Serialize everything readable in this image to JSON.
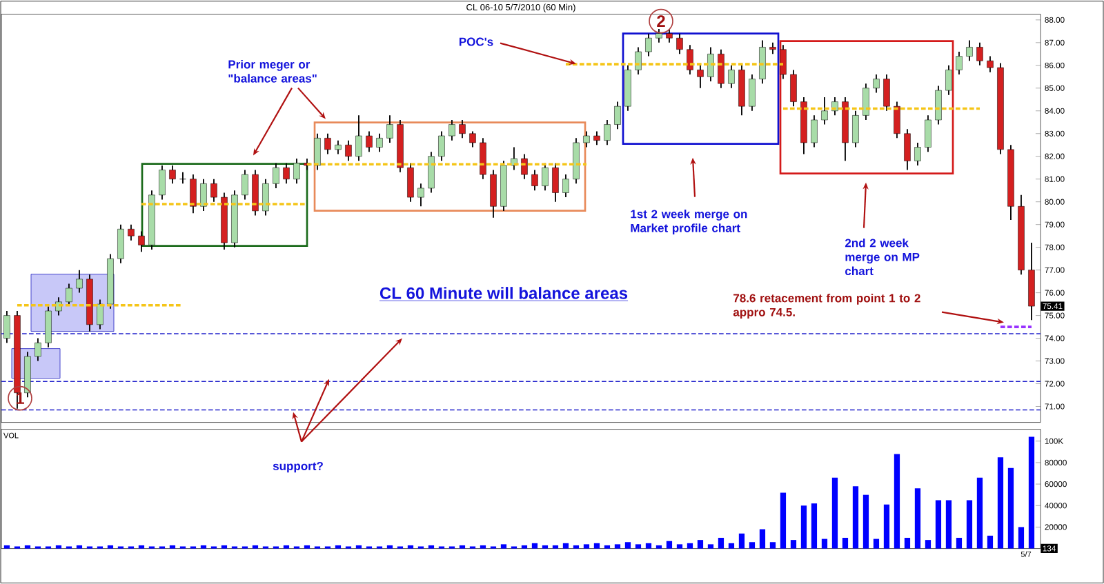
{
  "chart_data": [
    {
      "type": "candlestick",
      "title": "CL 06-10  5/7/2010 (60 Min)",
      "categories": [
        null,
        null,
        null,
        null,
        null,
        null,
        null,
        null,
        null,
        null,
        null,
        null,
        null,
        null,
        null,
        null,
        null,
        null,
        null,
        null,
        null,
        null,
        null,
        null,
        null,
        null,
        null,
        null,
        null,
        null,
        null,
        null,
        null,
        null,
        null,
        null,
        null,
        null,
        null,
        null,
        null,
        null,
        null,
        null,
        null,
        null,
        null,
        null,
        null,
        null,
        null,
        null,
        null,
        null,
        null,
        null,
        null,
        null,
        null,
        null,
        null,
        null,
        null,
        null,
        null,
        null,
        null,
        null,
        null,
        null,
        null,
        null,
        null,
        null,
        null,
        null,
        null,
        null,
        null,
        null,
        null,
        null,
        null,
        null,
        null,
        null,
        null,
        null,
        null,
        null,
        null,
        null,
        null,
        null,
        null,
        null,
        null,
        null,
        null,
        null
      ],
      "ohlc": [
        [
          74.0,
          75.2,
          73.8,
          75.0
        ],
        [
          75.0,
          75.2,
          70.9,
          71.6
        ],
        [
          71.6,
          73.4,
          71.4,
          73.2
        ],
        [
          73.2,
          74.0,
          73.0,
          73.8
        ],
        [
          73.8,
          75.4,
          73.6,
          75.2
        ],
        [
          75.2,
          75.8,
          75.0,
          75.6
        ],
        [
          75.6,
          76.4,
          75.5,
          76.2
        ],
        [
          76.2,
          77.0,
          76.0,
          76.6
        ],
        [
          76.6,
          76.8,
          74.3,
          74.6
        ],
        [
          74.6,
          75.7,
          74.4,
          75.5
        ],
        [
          75.5,
          77.7,
          75.3,
          77.5
        ],
        [
          77.5,
          79.0,
          77.3,
          78.8
        ],
        [
          78.8,
          79.0,
          78.3,
          78.5
        ],
        [
          78.5,
          78.7,
          77.8,
          78.1
        ],
        [
          78.1,
          80.5,
          77.9,
          80.3
        ],
        [
          80.3,
          81.6,
          80.1,
          81.4
        ],
        [
          81.4,
          81.6,
          80.8,
          81.0
        ],
        [
          81.0,
          81.3,
          80.8,
          81.0
        ],
        [
          81.0,
          81.2,
          79.5,
          79.8
        ],
        [
          79.8,
          81.0,
          79.6,
          80.8
        ],
        [
          80.8,
          81.0,
          80.0,
          80.2
        ],
        [
          80.2,
          80.4,
          77.9,
          78.2
        ],
        [
          78.2,
          80.5,
          78.0,
          80.3
        ],
        [
          80.3,
          81.4,
          80.1,
          81.2
        ],
        [
          81.2,
          81.4,
          79.4,
          79.6
        ],
        [
          79.6,
          81.0,
          79.4,
          80.8
        ],
        [
          80.8,
          81.7,
          80.6,
          81.5
        ],
        [
          81.5,
          81.7,
          80.8,
          81.0
        ],
        [
          81.0,
          81.9,
          80.8,
          81.7
        ],
        [
          81.7,
          81.9,
          81.4,
          81.6
        ],
        [
          81.6,
          83.0,
          81.4,
          82.8
        ],
        [
          82.8,
          83.0,
          82.1,
          82.3
        ],
        [
          82.3,
          82.7,
          82.1,
          82.5
        ],
        [
          82.5,
          82.7,
          81.8,
          82.0
        ],
        [
          82.0,
          83.8,
          81.8,
          82.9
        ],
        [
          82.9,
          83.1,
          82.2,
          82.4
        ],
        [
          82.4,
          83.0,
          82.2,
          82.8
        ],
        [
          82.8,
          83.8,
          82.6,
          83.4
        ],
        [
          83.4,
          83.6,
          81.3,
          81.5
        ],
        [
          81.5,
          81.7,
          80.0,
          80.2
        ],
        [
          80.2,
          80.8,
          79.8,
          80.6
        ],
        [
          80.6,
          82.2,
          80.4,
          82.0
        ],
        [
          82.0,
          83.1,
          81.8,
          82.9
        ],
        [
          82.9,
          83.6,
          82.7,
          83.4
        ],
        [
          83.4,
          83.6,
          82.8,
          83.0
        ],
        [
          83.0,
          83.1,
          82.4,
          82.6
        ],
        [
          82.6,
          82.8,
          81.0,
          81.2
        ],
        [
          81.2,
          81.4,
          79.3,
          79.8
        ],
        [
          79.8,
          81.8,
          79.6,
          81.6
        ],
        [
          81.6,
          82.4,
          81.4,
          81.9
        ],
        [
          81.9,
          82.1,
          81.0,
          81.2
        ],
        [
          81.2,
          81.4,
          80.5,
          80.7
        ],
        [
          80.7,
          81.7,
          80.5,
          81.5
        ],
        [
          81.5,
          81.7,
          80.0,
          80.4
        ],
        [
          80.4,
          81.2,
          80.2,
          81.0
        ],
        [
          81.0,
          82.8,
          80.8,
          82.6
        ],
        [
          82.6,
          83.1,
          82.4,
          82.9
        ],
        [
          82.9,
          83.1,
          82.5,
          82.7
        ],
        [
          82.7,
          83.6,
          82.5,
          83.4
        ],
        [
          83.4,
          84.4,
          83.2,
          84.2
        ],
        [
          84.2,
          86.0,
          84.0,
          85.8
        ],
        [
          85.8,
          86.8,
          85.6,
          86.6
        ],
        [
          86.6,
          87.4,
          86.4,
          87.2
        ],
        [
          87.2,
          87.6,
          87.0,
          87.4
        ],
        [
          87.4,
          87.6,
          87.0,
          87.2
        ],
        [
          87.2,
          87.4,
          86.5,
          86.7
        ],
        [
          86.7,
          86.9,
          85.6,
          85.8
        ],
        [
          85.8,
          86.0,
          85.0,
          85.5
        ],
        [
          85.5,
          86.8,
          85.3,
          86.5
        ],
        [
          86.5,
          86.7,
          85.0,
          85.2
        ],
        [
          85.2,
          86.0,
          85.0,
          85.8
        ],
        [
          85.8,
          86.0,
          83.8,
          84.2
        ],
        [
          84.2,
          85.6,
          84.0,
          85.4
        ],
        [
          85.4,
          87.1,
          85.2,
          86.8
        ],
        [
          86.8,
          87.0,
          86.5,
          86.7
        ],
        [
          86.7,
          86.9,
          85.4,
          85.6
        ],
        [
          85.6,
          85.8,
          84.2,
          84.4
        ],
        [
          84.4,
          84.6,
          82.1,
          82.6
        ],
        [
          82.6,
          83.8,
          82.4,
          83.6
        ],
        [
          83.6,
          84.6,
          83.4,
          84.0
        ],
        [
          84.0,
          84.6,
          83.8,
          84.4
        ],
        [
          84.4,
          84.6,
          81.8,
          82.6
        ],
        [
          82.6,
          84.0,
          82.4,
          83.8
        ],
        [
          83.8,
          85.2,
          83.6,
          85.0
        ],
        [
          85.0,
          85.6,
          84.8,
          85.4
        ],
        [
          85.4,
          85.6,
          84.0,
          84.2
        ],
        [
          84.2,
          84.4,
          82.8,
          83.0
        ],
        [
          83.0,
          83.2,
          81.4,
          81.8
        ],
        [
          81.8,
          82.6,
          81.6,
          82.4
        ],
        [
          82.4,
          83.8,
          82.2,
          83.6
        ],
        [
          83.6,
          85.1,
          83.4,
          84.9
        ],
        [
          84.9,
          86.0,
          84.7,
          85.8
        ],
        [
          85.8,
          86.6,
          85.6,
          86.4
        ],
        [
          86.4,
          87.1,
          86.2,
          86.8
        ],
        [
          86.8,
          87.0,
          86.0,
          86.2
        ],
        [
          86.2,
          86.4,
          85.7,
          85.9
        ],
        [
          85.9,
          86.1,
          82.1,
          82.3
        ],
        [
          82.3,
          82.5,
          79.2,
          79.8
        ],
        [
          79.8,
          80.3,
          76.8,
          77.0
        ],
        [
          77.0,
          78.2,
          74.8,
          75.41
        ]
      ],
      "series": [
        {
          "type": "line",
          "color": "#f5c518",
          "line_style": "dashed",
          "values": [
            null,
            75.45,
            75.45,
            75.45,
            75.45,
            75.45,
            75.45,
            75.45,
            75.45,
            75.45,
            75.45,
            75.45,
            75.45,
            75.45,
            75.45,
            75.45,
            75.45,
            75.45,
            null,
            null,
            null,
            null,
            null,
            null,
            null,
            null,
            null,
            null,
            null,
            null,
            null,
            null,
            null,
            null,
            null,
            null,
            null,
            null,
            null,
            null,
            null,
            null,
            null,
            null,
            null,
            null,
            null,
            null,
            null,
            null,
            null,
            null,
            null,
            null,
            null,
            null,
            null,
            null,
            null,
            null,
            null,
            null,
            null,
            null,
            null,
            null,
            null,
            null,
            null,
            null,
            null,
            null,
            null,
            null,
            null,
            null,
            null,
            null,
            null,
            null,
            null,
            null,
            null,
            null,
            null,
            null,
            null,
            null,
            null,
            null,
            null,
            null,
            null,
            null,
            null,
            null,
            null,
            null,
            null,
            null
          ]
        },
        {
          "type": "line",
          "color": "#f5c518",
          "line_style": "dashed",
          "values": [
            null,
            null,
            null,
            null,
            null,
            null,
            null,
            null,
            null,
            null,
            null,
            null,
            null,
            79.9,
            79.9,
            79.9,
            79.9,
            79.9,
            79.9,
            79.9,
            79.9,
            79.9,
            79.9,
            79.9,
            79.9,
            79.9,
            79.9,
            79.9,
            79.9,
            79.9,
            null,
            null,
            null,
            null,
            null,
            null,
            null,
            null,
            null,
            null,
            null,
            null,
            null,
            null,
            null,
            null,
            null,
            null,
            null,
            null,
            null,
            null,
            null,
            null,
            null,
            null,
            null,
            null,
            null,
            null,
            null,
            null,
            null,
            null,
            null,
            null,
            null,
            null,
            null,
            null,
            null,
            null,
            null,
            null,
            null,
            null,
            null,
            null,
            null,
            null,
            null,
            null,
            null,
            null,
            null,
            null,
            null,
            null,
            null,
            null,
            null,
            null,
            null,
            null,
            null,
            null,
            null,
            null,
            null,
            null
          ]
        },
        {
          "type": "line",
          "color": "#f5c518",
          "line_style": "dashed",
          "values": [
            null,
            null,
            null,
            null,
            null,
            null,
            null,
            null,
            null,
            null,
            null,
            null,
            null,
            null,
            null,
            null,
            null,
            null,
            null,
            null,
            null,
            null,
            null,
            null,
            null,
            null,
            null,
            null,
            null,
            81.65,
            81.65,
            81.65,
            81.65,
            81.65,
            81.65,
            81.65,
            81.65,
            81.65,
            81.65,
            81.65,
            81.65,
            81.65,
            81.65,
            81.65,
            81.65,
            81.65,
            81.65,
            81.65,
            81.65,
            81.65,
            81.65,
            81.65,
            81.65,
            81.65,
            81.65,
            81.65,
            81.65,
            null,
            null,
            null,
            null,
            null,
            null,
            null,
            null,
            null,
            null,
            null,
            null,
            null,
            null,
            null,
            null,
            null,
            null,
            null,
            null,
            null,
            null,
            null,
            null,
            null,
            null,
            null,
            null,
            null,
            null,
            null,
            null,
            null,
            null,
            null,
            null,
            null,
            null,
            null,
            null,
            null,
            null,
            null
          ]
        },
        {
          "type": "line",
          "color": "#f5c518",
          "line_style": "dashed",
          "values": [
            null,
            null,
            null,
            null,
            null,
            null,
            null,
            null,
            null,
            null,
            null,
            null,
            null,
            null,
            null,
            null,
            null,
            null,
            null,
            null,
            null,
            null,
            null,
            null,
            null,
            null,
            null,
            null,
            null,
            null,
            null,
            null,
            null,
            null,
            null,
            null,
            null,
            null,
            null,
            null,
            null,
            null,
            null,
            null,
            null,
            null,
            null,
            null,
            null,
            null,
            null,
            null,
            null,
            null,
            86.05,
            86.05,
            86.05,
            86.05,
            86.05,
            86.05,
            86.05,
            86.05,
            86.05,
            86.05,
            86.05,
            86.05,
            86.05,
            86.05,
            86.05,
            86.05,
            86.05,
            86.05,
            86.05,
            86.05,
            86.05,
            86.05,
            null,
            null,
            null,
            null,
            null,
            null,
            null,
            null,
            null,
            null,
            null,
            null,
            null,
            null,
            null,
            null,
            null,
            null,
            null,
            null,
            null,
            null,
            null,
            null
          ]
        },
        {
          "type": "line",
          "color": "#f5c518",
          "line_style": "dashed",
          "values": [
            null,
            null,
            null,
            null,
            null,
            null,
            null,
            null,
            null,
            null,
            null,
            null,
            null,
            null,
            null,
            null,
            null,
            null,
            null,
            null,
            null,
            null,
            null,
            null,
            null,
            null,
            null,
            null,
            null,
            null,
            null,
            null,
            null,
            null,
            null,
            null,
            null,
            null,
            null,
            null,
            null,
            null,
            null,
            null,
            null,
            null,
            null,
            null,
            null,
            null,
            null,
            null,
            null,
            null,
            null,
            null,
            null,
            null,
            null,
            null,
            null,
            null,
            null,
            null,
            null,
            null,
            null,
            null,
            null,
            null,
            null,
            null,
            null,
            null,
            null,
            84.1,
            84.1,
            84.1,
            84.1,
            84.1,
            84.1,
            84.1,
            84.1,
            84.1,
            84.1,
            84.1,
            84.1,
            84.1,
            84.1,
            84.1,
            84.1,
            84.1,
            84.1,
            84.1,
            84.1,
            null,
            null,
            null,
            null,
            null
          ]
        },
        {
          "type": "line",
          "color": "#9933ff",
          "line_style": "dashed",
          "values": [
            null,
            null,
            null,
            null,
            null,
            null,
            null,
            null,
            null,
            null,
            null,
            null,
            null,
            null,
            null,
            null,
            null,
            null,
            null,
            null,
            null,
            null,
            null,
            null,
            null,
            null,
            null,
            null,
            null,
            null,
            null,
            null,
            null,
            null,
            null,
            null,
            null,
            null,
            null,
            null,
            null,
            null,
            null,
            null,
            null,
            null,
            null,
            null,
            null,
            null,
            null,
            null,
            null,
            null,
            null,
            null,
            null,
            null,
            null,
            null,
            null,
            null,
            null,
            null,
            null,
            null,
            null,
            null,
            null,
            null,
            null,
            null,
            null,
            null,
            null,
            null,
            null,
            null,
            null,
            null,
            null,
            null,
            null,
            null,
            null,
            null,
            null,
            null,
            null,
            null,
            null,
            null,
            null,
            null,
            null,
            null,
            74.5,
            74.5,
            74.5,
            74.5
          ]
        }
      ],
      "ylim": [
        70.3,
        88.25
      ],
      "yticks": [
        {
          "value": 71,
          "label": "71.00"
        },
        {
          "value": 72,
          "label": "72.00"
        },
        {
          "value": 73,
          "label": "73.00"
        },
        {
          "value": 74,
          "label": "74.00"
        },
        {
          "value": 75,
          "label": "75.00"
        },
        {
          "value": 76,
          "label": "76.00"
        },
        {
          "value": 77,
          "label": "77.00"
        },
        {
          "value": 78,
          "label": "78.00"
        },
        {
          "value": 79,
          "label": "79.00"
        },
        {
          "value": 80,
          "label": "80.00"
        },
        {
          "value": 81,
          "label": "81.00"
        },
        {
          "value": 82,
          "label": "82.00"
        },
        {
          "value": 83,
          "label": "83.00"
        },
        {
          "value": 84,
          "label": "84.00"
        },
        {
          "value": 85,
          "label": "85.00"
        },
        {
          "value": 86,
          "label": "86.00"
        },
        {
          "value": 87,
          "label": "87.00"
        },
        {
          "value": 88,
          "label": "88.00"
        }
      ],
      "tick_labels": "y",
      "ref_lines": [
        {
          "axis": "y",
          "value": 74.2,
          "color": "#2222cc",
          "line_style": "dashed"
        },
        {
          "axis": "y",
          "value": 72.1,
          "color": "#2222cc",
          "line_style": "dashed"
        },
        {
          "axis": "y",
          "value": 70.85,
          "color": "#2222cc",
          "line_style": "dashed"
        }
      ],
      "annotations": [
        "Prior meger or \"balance areas\"",
        "POC's",
        "CL 60 Minute will balance areas",
        "1st 2 week merge on Market profile chart",
        "2nd 2 week merge on MP chart",
        "78.6 retacement from point 1 to 2 appro 74.5.",
        "1",
        "2",
        "support?",
        {
          "text": "75.41",
          "y": 75.41
        }
      ]
    },
    {
      "type": "bar",
      "categories": [
        null,
        null,
        null,
        null,
        null,
        null,
        null,
        null,
        null,
        null,
        null,
        null,
        null,
        null,
        null,
        null,
        null,
        null,
        null,
        null,
        null,
        null,
        null,
        null,
        null,
        null,
        null,
        null,
        null,
        null,
        null,
        null,
        null,
        null,
        null,
        null,
        null,
        null,
        null,
        null,
        null,
        null,
        null,
        null,
        null,
        null,
        null,
        null,
        null,
        null,
        null,
        null,
        null,
        null,
        null,
        null,
        null,
        null,
        null,
        null,
        null,
        null,
        null,
        null,
        null,
        null,
        null,
        null,
        null,
        null,
        null,
        null,
        null,
        null,
        null,
        null,
        null,
        null,
        null,
        null,
        null,
        null,
        null,
        null,
        null,
        null,
        null,
        null,
        null,
        null,
        null,
        null,
        null,
        null,
        null,
        null,
        null,
        null,
        null,
        null
      ],
      "values": [
        3000,
        2000,
        3000,
        2000,
        2000,
        3000,
        2000,
        3000,
        2000,
        2000,
        3000,
        2000,
        2000,
        3000,
        2000,
        2000,
        3000,
        2000,
        2000,
        3000,
        2000,
        3000,
        2000,
        2000,
        3000,
        2000,
        2000,
        3000,
        2000,
        3000,
        2000,
        2000,
        3000,
        2000,
        3000,
        2000,
        2000,
        3000,
        2000,
        3000,
        2000,
        3000,
        2000,
        2000,
        3000,
        2000,
        3000,
        2000,
        4000,
        2000,
        3000,
        5000,
        3000,
        3000,
        5000,
        3000,
        4000,
        5000,
        3000,
        4000,
        6000,
        4000,
        5000,
        3000,
        7000,
        4000,
        5000,
        8000,
        4000,
        10000,
        5000,
        14000,
        6000,
        18000,
        6000,
        52000,
        8000,
        40000,
        42000,
        9000,
        66000,
        10000,
        58000,
        50000,
        9000,
        41000,
        88000,
        10000,
        56000,
        8000,
        45000,
        45000,
        10000,
        45000,
        66000,
        12000,
        85000,
        75000,
        20000,
        104000
      ],
      "color": "#0000ff",
      "ylim": [
        0,
        111000
      ],
      "yticks": [
        {
          "value": 20000,
          "label": "20000"
        },
        {
          "value": 40000,
          "label": "40000"
        },
        {
          "value": 60000,
          "label": "60000"
        },
        {
          "value": 80000,
          "label": "80000"
        },
        {
          "value": 100000,
          "label": "100K"
        }
      ],
      "annotations": [
        "VOL",
        {
          "text": "134",
          "y": 134
        },
        "5/7"
      ]
    }
  ]
}
